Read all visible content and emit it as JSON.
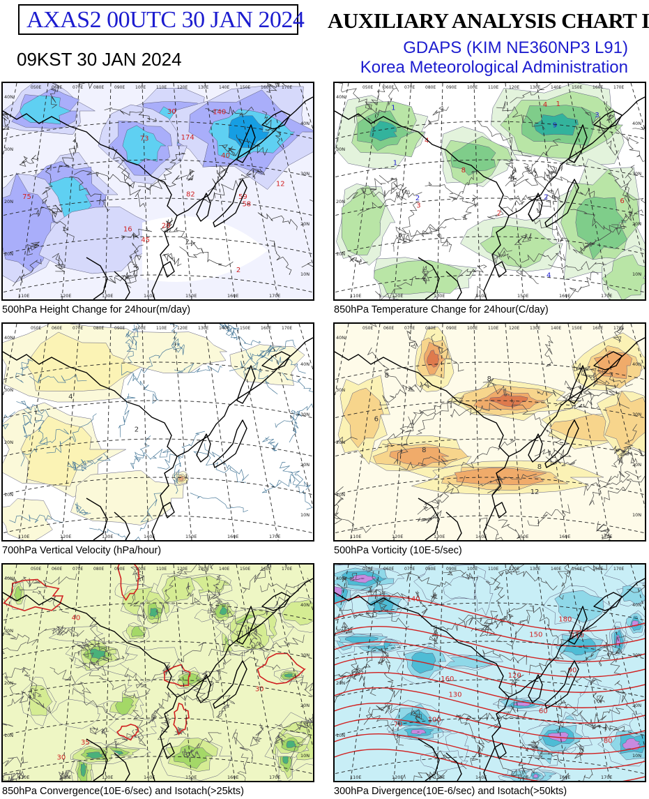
{
  "header": {
    "product_box": "AXAS2  00UTC 30 JAN 2024",
    "local_time": "09KST 30 JAN 2024",
    "chart_title": "AUXILIARY ANALYSIS CHART II",
    "model": "GDAPS (KIM NE360NP3 L91)",
    "agency": "Korea Meteorological Administration"
  },
  "panels": [
    {
      "id": "height-change",
      "caption": "500hPa Height Change for 24hour(m/day)",
      "palette": [
        "#d6d9fb",
        "#a9aefa",
        "#5fd0f2",
        "#169ee3"
      ],
      "contour_labels": [
        "12",
        "59",
        "45",
        "58",
        "73",
        "140",
        "174",
        "40",
        "20",
        "16",
        "75",
        "30",
        "2",
        "82"
      ]
    },
    {
      "id": "temperature-change",
      "caption": "850hPa Temperature Change for 24hour(C/day)",
      "palette": [
        "#e3f3dc",
        "#b9e5a6",
        "#7fcd8a",
        "#33b39c",
        "#1aa4e0"
      ],
      "contour_labels": [
        "2",
        "3",
        "1",
        "6",
        "4",
        "8",
        "4",
        "3",
        "2",
        "2",
        "1",
        "4",
        "1",
        "9"
      ]
    },
    {
      "id": "vertical-velocity",
      "caption": "700hPa Vertical Velocity (hPa/hour)",
      "palette": [
        "#fbf9d9",
        "#fbf3b5",
        "#f5d58e",
        "#e9a77a"
      ],
      "contour_labels": [
        "2",
        "4"
      ]
    },
    {
      "id": "vorticity",
      "caption": "500hPa Vorticity (10E-5/sec)",
      "palette": [
        "#fbf2b5",
        "#f7d58c",
        "#f0ab6a",
        "#de7a4d"
      ],
      "contour_labels": [
        "8",
        "8",
        "6",
        "8",
        "8",
        "12"
      ]
    },
    {
      "id": "convergence",
      "caption": "850hPa Convergence(10E-6/sec) and Isotach(>25kts)",
      "palette": [
        "#eef6c4",
        "#d5ec93",
        "#a4d867",
        "#49b17a",
        "#1c8f9e"
      ],
      "contour_labels": [
        "30",
        "30",
        "35",
        "40"
      ]
    },
    {
      "id": "divergence",
      "caption": "300hPa Divergence(10E-6/sec) and Isotach(>50kts)",
      "palette": [
        "#c8eef6",
        "#8fd8e8",
        "#4ebcd5",
        "#c78be0",
        "#cc4fd0"
      ],
      "contour_labels": [
        "80",
        "100",
        "120",
        "140",
        "160",
        "180",
        "70",
        "90",
        "110",
        "130",
        "150",
        "60"
      ]
    }
  ],
  "map_grid": {
    "lon_labels": [
      "080E",
      "090E",
      "100E",
      "110E",
      "120E",
      "130E",
      "140E",
      "150E",
      "160E",
      "170E"
    ],
    "lat_labels": [
      "10N",
      "20N",
      "30N",
      "40N"
    ]
  }
}
